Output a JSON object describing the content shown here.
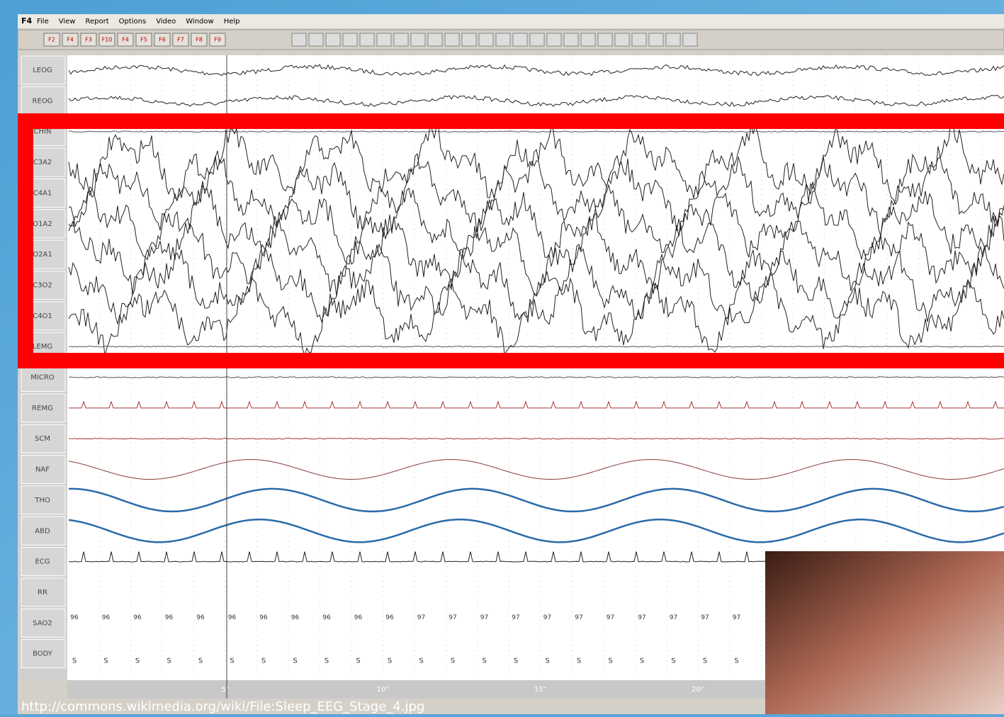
{
  "window": {
    "menu": [
      "F4",
      "File",
      "View",
      "Report",
      "Options",
      "Video",
      "Window",
      "Help"
    ],
    "toolbar_keys": [
      "F2",
      "F4",
      "F3",
      "F10",
      "F4",
      "F5",
      "F6",
      "F7",
      "F8",
      "F9"
    ]
  },
  "channels": [
    "LEOG",
    "REOG",
    "CHIN",
    "C3A2",
    "C4A1",
    "O1A2",
    "O2A1",
    "C3O2",
    "C4O1",
    "LEMG",
    "MICRO",
    "REMG",
    "SCM",
    "NAF",
    "THO",
    "ABD",
    "ECG",
    "RR",
    "SAO2",
    "BODY"
  ],
  "sao2_values": [
    "96",
    "96",
    "96",
    "96",
    "96",
    "96",
    "96",
    "96",
    "96",
    "96",
    "96",
    "97",
    "97",
    "97",
    "97",
    "97",
    "97",
    "97",
    "97",
    "97",
    "97",
    "97"
  ],
  "body_positions": [
    "S",
    "S",
    "S",
    "S",
    "S",
    "S",
    "S",
    "S",
    "S",
    "S",
    "S",
    "S",
    "S",
    "S",
    "S",
    "S",
    "S",
    "S",
    "S",
    "S",
    "S",
    "S"
  ],
  "time_marks": [
    "5\"",
    "10\"",
    "15\"",
    "20\""
  ],
  "source_url": "http://commons.wikimedia.org/wiki/File:Sleep_EEG_Stage_4.jpg"
}
